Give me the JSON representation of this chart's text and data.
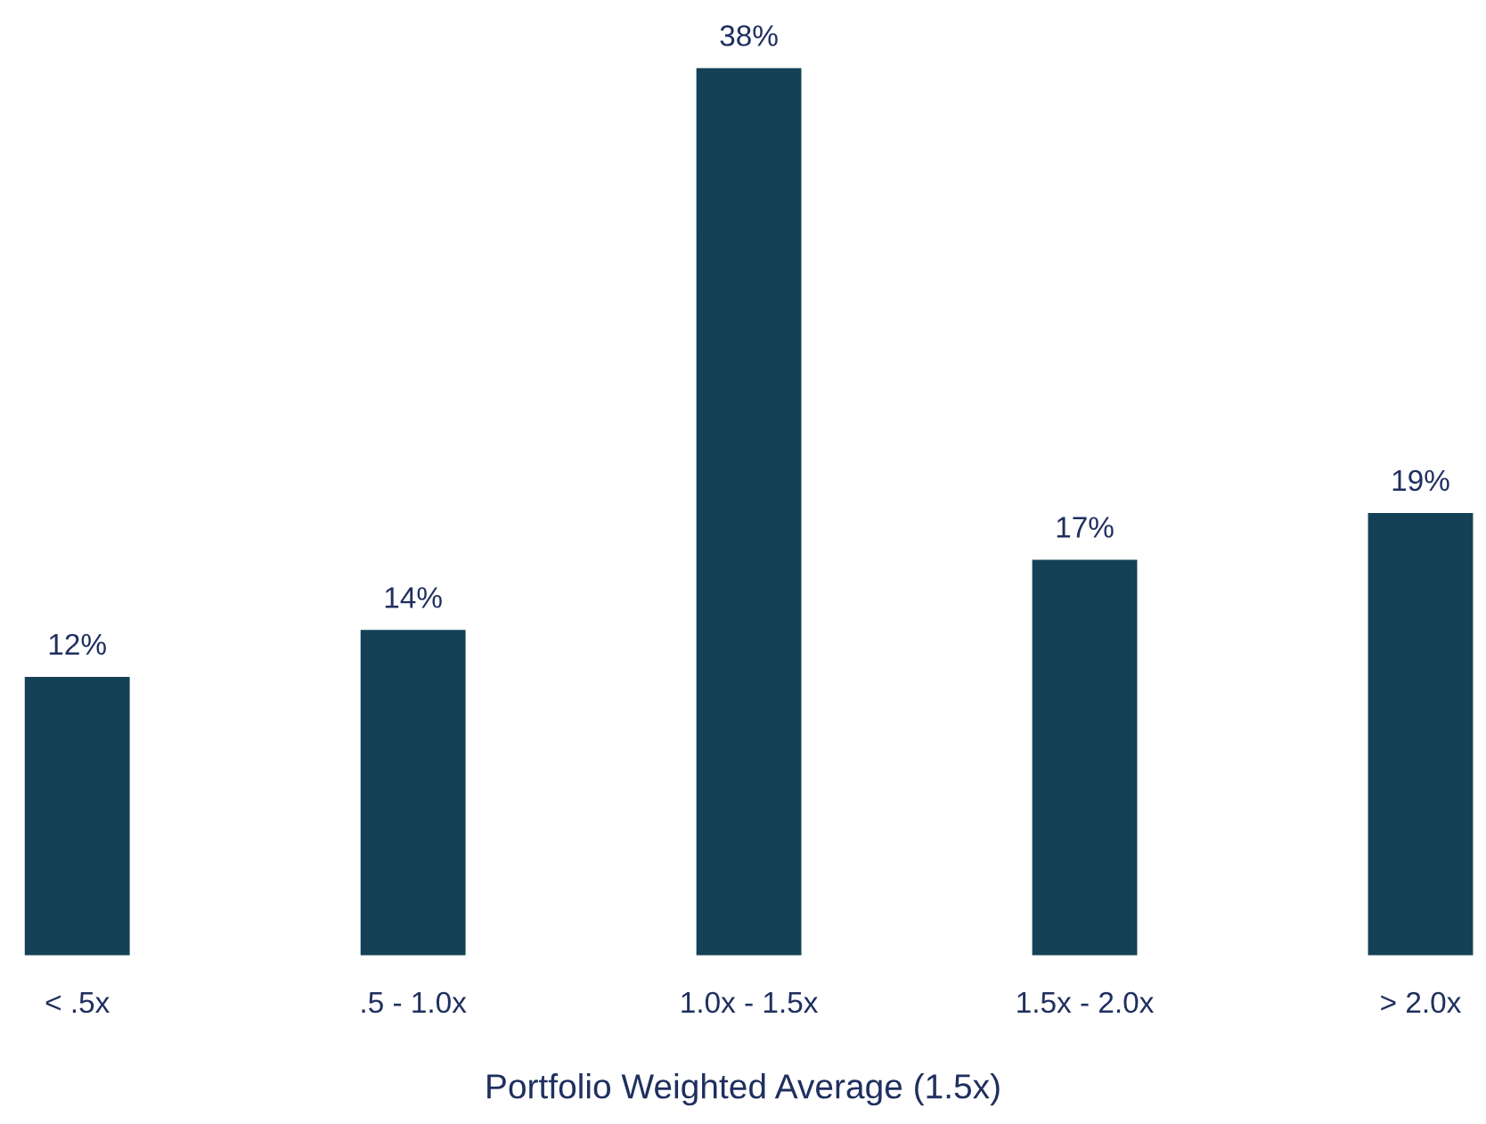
{
  "chart_data": {
    "type": "bar",
    "xlabel": "Portfolio Weighted Average (1.5x)",
    "categories": [
      "< .5x",
      ".5 - 1.0x",
      "1.0x - 1.5x",
      "1.5x - 2.0x",
      "> 2.0x"
    ],
    "values": [
      12,
      14,
      38,
      17,
      19
    ],
    "value_labels": [
      "12%",
      "14%",
      "38%",
      "17%",
      "19%"
    ],
    "color": "#154157",
    "tick_labels": "x",
    "grid": false,
    "legend": false
  }
}
